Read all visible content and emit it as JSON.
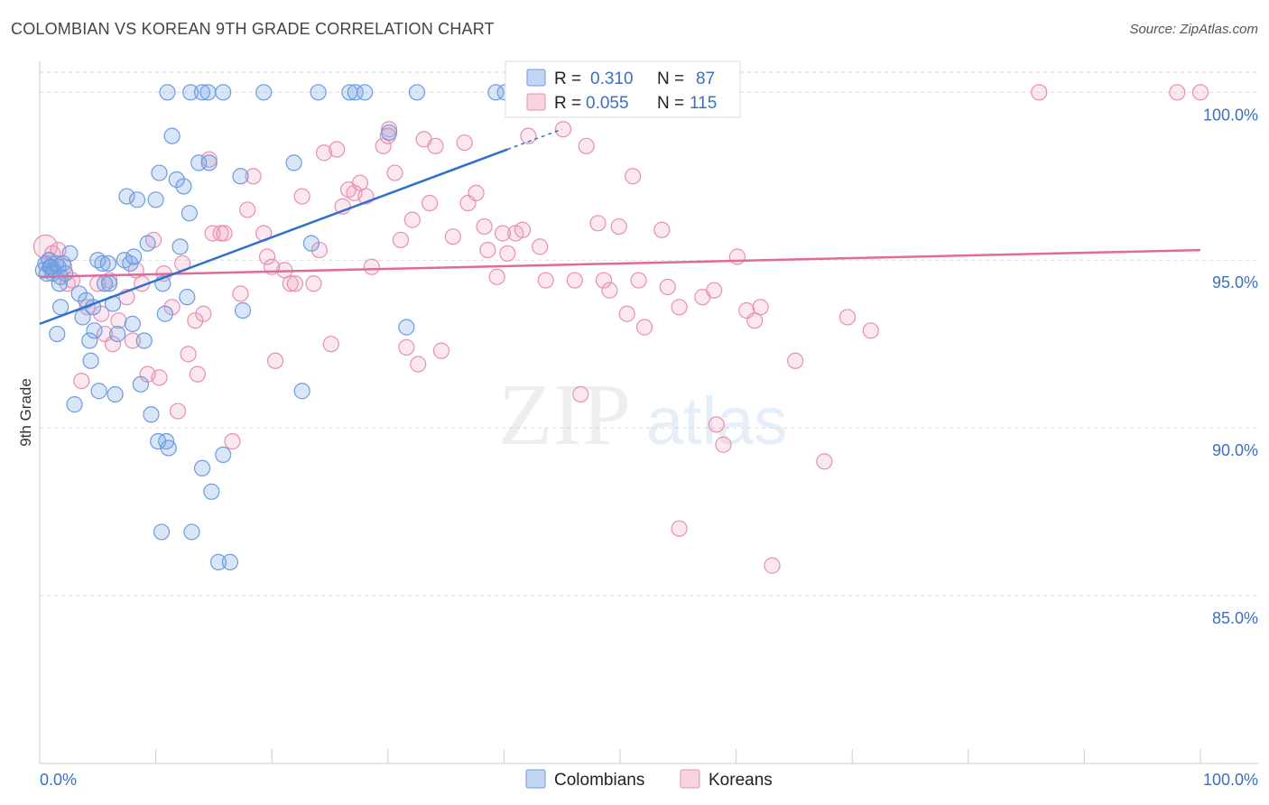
{
  "title": "COLOMBIAN VS KOREAN 9TH GRADE CORRELATION CHART",
  "source": "Source: ZipAtlas.com",
  "watermark": {
    "zip": "ZIP",
    "atlas": "atlas"
  },
  "colors": {
    "blue_fill": "rgba(120,165,230,0.28)",
    "blue_stroke": "#6d9be0",
    "blue_line": "#2f6fd0",
    "pink_fill": "rgba(240,160,190,0.25)",
    "pink_stroke": "#e98fb0",
    "pink_line": "#e06b98",
    "tick_label": "#3b6fc4",
    "grid": "#d9d9d9"
  },
  "legend": {
    "r_label": "R =",
    "n_label": "N =",
    "rows": [
      {
        "series": "Colombians",
        "r": "0.310",
        "n": "87"
      },
      {
        "series": "Koreans",
        "r": "0.055",
        "n": "115"
      }
    ]
  },
  "chart_data": {
    "type": "scatter",
    "title": "COLOMBIAN VS KOREAN 9TH GRADE CORRELATION CHART",
    "xlabel": "",
    "ylabel": "9th Grade",
    "xlim": [
      0,
      100
    ],
    "ylim": [
      80.0,
      100.6
    ],
    "x_tick_labels": [
      "0.0%",
      "100.0%"
    ],
    "y_ticks": [
      100,
      95,
      90,
      85
    ],
    "y_tick_labels": [
      "100.0%",
      "95.0%",
      "90.0%",
      "85.0%"
    ],
    "grid": "horizontal dashed",
    "legend_position": "top-center",
    "series": [
      {
        "name": "Colombians",
        "trend": {
          "x": [
            0,
            40.3
          ],
          "y": [
            93.1,
            98.3
          ]
        },
        "trend_dashed_extension": {
          "x": [
            40.3,
            45
          ],
          "y": [
            98.3,
            98.9
          ]
        },
        "points": [
          [
            0.3,
            94.7
          ],
          [
            0.5,
            94.9
          ],
          [
            0.6,
            94.6
          ],
          [
            0.8,
            95.0
          ],
          [
            1.0,
            94.8
          ],
          [
            1.2,
            94.7
          ],
          [
            1.4,
            94.9
          ],
          [
            1.6,
            94.8
          ],
          [
            1.8,
            94.5
          ],
          [
            2.2,
            94.6
          ],
          [
            2.6,
            95.2
          ],
          [
            1.5,
            92.8
          ],
          [
            1.7,
            94.3
          ],
          [
            1.8,
            93.6
          ],
          [
            3.4,
            94.0
          ],
          [
            3.7,
            93.3
          ],
          [
            4.0,
            93.8
          ],
          [
            4.3,
            92.6
          ],
          [
            4.4,
            92.0
          ],
          [
            3.0,
            90.7
          ],
          [
            4.6,
            93.6
          ],
          [
            4.7,
            92.9
          ],
          [
            5.0,
            95.0
          ],
          [
            5.1,
            91.1
          ],
          [
            5.4,
            94.9
          ],
          [
            5.6,
            94.3
          ],
          [
            5.9,
            94.9
          ],
          [
            6.3,
            93.7
          ],
          [
            6.5,
            91.0
          ],
          [
            6.7,
            92.8
          ],
          [
            7.3,
            95.0
          ],
          [
            7.5,
            96.9
          ],
          [
            7.8,
            94.9
          ],
          [
            8.0,
            93.1
          ],
          [
            8.1,
            95.1
          ],
          [
            8.4,
            96.8
          ],
          [
            8.7,
            91.3
          ],
          [
            9.0,
            92.6
          ],
          [
            9.3,
            95.5
          ],
          [
            9.6,
            90.4
          ],
          [
            10.0,
            96.8
          ],
          [
            10.2,
            89.6
          ],
          [
            10.3,
            97.6
          ],
          [
            10.6,
            94.3
          ],
          [
            10.8,
            93.4
          ],
          [
            10.9,
            89.6
          ],
          [
            11.1,
            89.4
          ],
          [
            11.4,
            98.7
          ],
          [
            11.8,
            97.4
          ],
          [
            12.1,
            95.4
          ],
          [
            12.4,
            97.2
          ],
          [
            12.7,
            93.9
          ],
          [
            12.9,
            96.4
          ],
          [
            13.7,
            97.9
          ],
          [
            14.0,
            88.8
          ],
          [
            14.6,
            97.9
          ],
          [
            14.8,
            88.1
          ],
          [
            15.4,
            86.0
          ],
          [
            15.8,
            89.2
          ],
          [
            16.4,
            86.0
          ],
          [
            17.3,
            97.5
          ],
          [
            17.5,
            93.5
          ],
          [
            21.9,
            97.9
          ],
          [
            22.6,
            91.1
          ],
          [
            23.4,
            95.5
          ],
          [
            10.5,
            86.9
          ],
          [
            13.1,
            86.9
          ],
          [
            11.0,
            100.0
          ],
          [
            13.0,
            100.0
          ],
          [
            14.0,
            100.0
          ],
          [
            14.5,
            100.0
          ],
          [
            15.8,
            100.0
          ],
          [
            19.3,
            100.0
          ],
          [
            24.0,
            100.0
          ],
          [
            26.7,
            100.0
          ],
          [
            27.2,
            100.0
          ],
          [
            28.0,
            100.0
          ],
          [
            32.5,
            100.0
          ],
          [
            39.3,
            100.0
          ],
          [
            40.1,
            100.0
          ],
          [
            41.0,
            100.0
          ],
          [
            30.1,
            98.8
          ],
          [
            31.6,
            93.0
          ],
          [
            6.0,
            94.3
          ],
          [
            0.9,
            94.8
          ],
          [
            2.0,
            94.9
          ],
          [
            1.1,
            94.6
          ]
        ]
      },
      {
        "name": "Koreans",
        "trend": {
          "x": [
            0,
            100
          ],
          "y": [
            94.5,
            95.3
          ]
        },
        "points": [
          [
            0.5,
            95.4
          ],
          [
            0.8,
            95.0
          ],
          [
            1.1,
            95.2
          ],
          [
            1.6,
            95.3
          ],
          [
            2.1,
            94.8
          ],
          [
            2.4,
            94.3
          ],
          [
            2.8,
            94.4
          ],
          [
            3.6,
            91.4
          ],
          [
            4.1,
            93.6
          ],
          [
            5.0,
            94.3
          ],
          [
            5.3,
            93.4
          ],
          [
            5.6,
            92.8
          ],
          [
            6.0,
            94.4
          ],
          [
            6.3,
            92.5
          ],
          [
            6.8,
            93.2
          ],
          [
            7.5,
            93.9
          ],
          [
            8.0,
            92.6
          ],
          [
            8.3,
            94.7
          ],
          [
            8.8,
            94.3
          ],
          [
            9.3,
            91.6
          ],
          [
            9.8,
            95.6
          ],
          [
            10.3,
            91.5
          ],
          [
            10.7,
            94.6
          ],
          [
            11.4,
            93.6
          ],
          [
            11.9,
            90.5
          ],
          [
            12.3,
            94.9
          ],
          [
            12.8,
            92.2
          ],
          [
            13.4,
            93.2
          ],
          [
            13.6,
            91.6
          ],
          [
            14.1,
            93.4
          ],
          [
            14.6,
            98.0
          ],
          [
            14.9,
            95.8
          ],
          [
            15.6,
            95.8
          ],
          [
            15.9,
            95.8
          ],
          [
            16.6,
            89.6
          ],
          [
            17.3,
            94.0
          ],
          [
            17.9,
            96.5
          ],
          [
            18.4,
            97.5
          ],
          [
            19.3,
            95.8
          ],
          [
            19.6,
            95.1
          ],
          [
            20.0,
            94.8
          ],
          [
            20.3,
            92.0
          ],
          [
            21.1,
            94.7
          ],
          [
            21.6,
            94.3
          ],
          [
            22.0,
            94.3
          ],
          [
            22.6,
            96.9
          ],
          [
            23.6,
            94.3
          ],
          [
            24.1,
            95.3
          ],
          [
            24.5,
            98.2
          ],
          [
            25.1,
            92.5
          ],
          [
            25.6,
            98.3
          ],
          [
            26.1,
            96.6
          ],
          [
            26.6,
            97.1
          ],
          [
            27.1,
            97.0
          ],
          [
            27.6,
            97.3
          ],
          [
            28.1,
            96.9
          ],
          [
            28.6,
            94.8
          ],
          [
            29.6,
            98.4
          ],
          [
            30.1,
            98.9
          ],
          [
            30.6,
            97.6
          ],
          [
            31.1,
            95.6
          ],
          [
            31.6,
            92.4
          ],
          [
            32.1,
            96.2
          ],
          [
            32.6,
            91.9
          ],
          [
            33.1,
            98.6
          ],
          [
            33.6,
            96.7
          ],
          [
            34.1,
            98.4
          ],
          [
            34.6,
            92.3
          ],
          [
            35.6,
            95.7
          ],
          [
            36.6,
            98.5
          ],
          [
            36.9,
            96.7
          ],
          [
            37.6,
            97.0
          ],
          [
            38.3,
            96.0
          ],
          [
            38.6,
            95.3
          ],
          [
            39.4,
            94.5
          ],
          [
            39.9,
            95.8
          ],
          [
            40.3,
            95.2
          ],
          [
            41.0,
            95.8
          ],
          [
            41.6,
            95.9
          ],
          [
            42.1,
            98.7
          ],
          [
            43.1,
            95.4
          ],
          [
            43.6,
            94.4
          ],
          [
            45.1,
            98.9
          ],
          [
            46.1,
            94.4
          ],
          [
            46.6,
            91.0
          ],
          [
            47.1,
            98.4
          ],
          [
            48.1,
            96.1
          ],
          [
            48.6,
            94.4
          ],
          [
            49.1,
            94.1
          ],
          [
            49.9,
            96.0
          ],
          [
            50.6,
            93.4
          ],
          [
            51.1,
            97.5
          ],
          [
            51.6,
            94.4
          ],
          [
            52.1,
            93.0
          ],
          [
            53.6,
            95.9
          ],
          [
            54.1,
            94.2
          ],
          [
            55.1,
            93.6
          ],
          [
            57.1,
            93.9
          ],
          [
            58.1,
            94.1
          ],
          [
            58.3,
            90.1
          ],
          [
            58.9,
            89.5
          ],
          [
            60.1,
            95.1
          ],
          [
            60.9,
            93.5
          ],
          [
            61.6,
            93.2
          ],
          [
            62.1,
            93.6
          ],
          [
            63.1,
            85.9
          ],
          [
            65.1,
            92.0
          ],
          [
            67.6,
            89.0
          ],
          [
            69.6,
            93.3
          ],
          [
            71.6,
            92.9
          ],
          [
            55.1,
            87.0
          ],
          [
            100.0,
            100.0
          ],
          [
            86.1,
            100.0
          ],
          [
            98.0,
            100.0
          ],
          [
            30.0,
            98.7
          ]
        ]
      }
    ]
  },
  "bottom_legend": [
    {
      "series": "Colombians",
      "label": "Colombians"
    },
    {
      "series": "Koreans",
      "label": "Koreans"
    }
  ]
}
